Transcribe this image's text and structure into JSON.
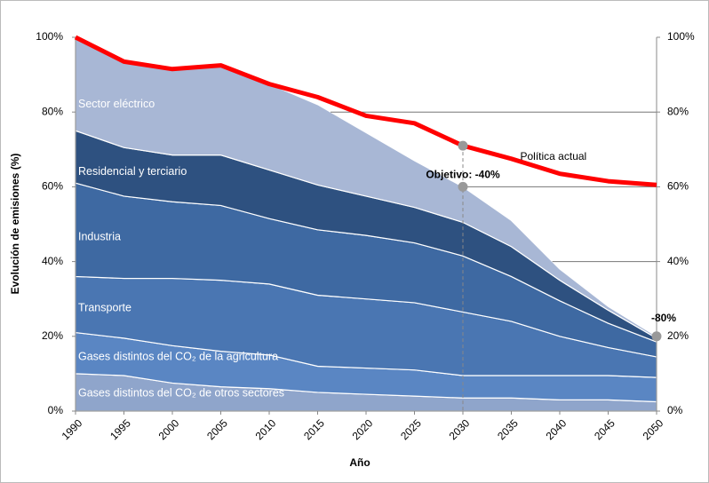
{
  "chart_data": {
    "type": "stacked_area",
    "xlabel": "Año",
    "ylabel": "Evolución de emisiones (%)",
    "categories": [
      "1990",
      "1995",
      "2000",
      "2005",
      "2010",
      "2015",
      "2020",
      "2025",
      "2030",
      "2035",
      "2040",
      "2045",
      "2050"
    ],
    "series": [
      {
        "name": "Gases distintos del CO₂ de otros sectores",
        "color": "#8fa5cb",
        "values": [
          10,
          9.5,
          7.5,
          6.5,
          6,
          5,
          4.5,
          4,
          3.5,
          3.5,
          3,
          3,
          2.5
        ]
      },
      {
        "name": "Gases distintos del CO₂ de la agricultura",
        "color": "#5a86c3",
        "values": [
          11,
          10,
          10,
          9.5,
          9,
          7,
          7,
          7,
          6,
          6,
          6.5,
          6.5,
          6.5
        ]
      },
      {
        "name": "Transporte",
        "color": "#4a76b2",
        "values": [
          15,
          16,
          18,
          19,
          19,
          19,
          18.5,
          18,
          17,
          14.5,
          10.5,
          7.5,
          5.5
        ]
      },
      {
        "name": "Industria",
        "color": "#3e69a2",
        "values": [
          25,
          22,
          20.5,
          20,
          17.5,
          17.5,
          17,
          16,
          15,
          12,
          9.5,
          6.5,
          4
        ]
      },
      {
        "name": "Residencial y terciario",
        "color": "#2e5180",
        "values": [
          14,
          13,
          12.5,
          13.5,
          13,
          12,
          10.5,
          9.5,
          9,
          8,
          5.5,
          3.5,
          1
        ]
      },
      {
        "name": "Sector eléctrico",
        "color": "#a8b7d5",
        "values": [
          25,
          23,
          23,
          24,
          23,
          21.5,
          17,
          12.5,
          9.5,
          7,
          3,
          1,
          0.5
        ]
      }
    ],
    "line": {
      "name": "Política actual",
      "color": "#ff0000",
      "values": [
        100,
        93.5,
        91.5,
        92.5,
        87.5,
        84,
        79,
        77,
        71,
        67.5,
        63.5,
        61.5,
        60.5
      ]
    },
    "annotations": [
      {
        "text": "Objetivo: -40%",
        "x": "2030",
        "y": 60
      },
      {
        "text": "-80%",
        "x": "2050",
        "y": 20
      }
    ],
    "ylim": [
      0,
      100
    ],
    "yticks": [
      {
        "value": 0,
        "label": "0%"
      },
      {
        "value": 20,
        "label": "20%"
      },
      {
        "value": 40,
        "label": "40%"
      },
      {
        "value": 60,
        "label": "60%"
      },
      {
        "value": 80,
        "label": "80%"
      },
      {
        "value": 100,
        "label": "100%"
      }
    ],
    "y2lim": [
      0,
      100
    ],
    "y2ticks": [
      {
        "value": 0,
        "label": "0%"
      },
      {
        "value": 20,
        "label": "20%"
      },
      {
        "value": 40,
        "label": "40%"
      },
      {
        "value": 60,
        "label": "60%"
      },
      {
        "value": 80,
        "label": "80%"
      },
      {
        "value": 100,
        "label": "100%"
      }
    ]
  }
}
